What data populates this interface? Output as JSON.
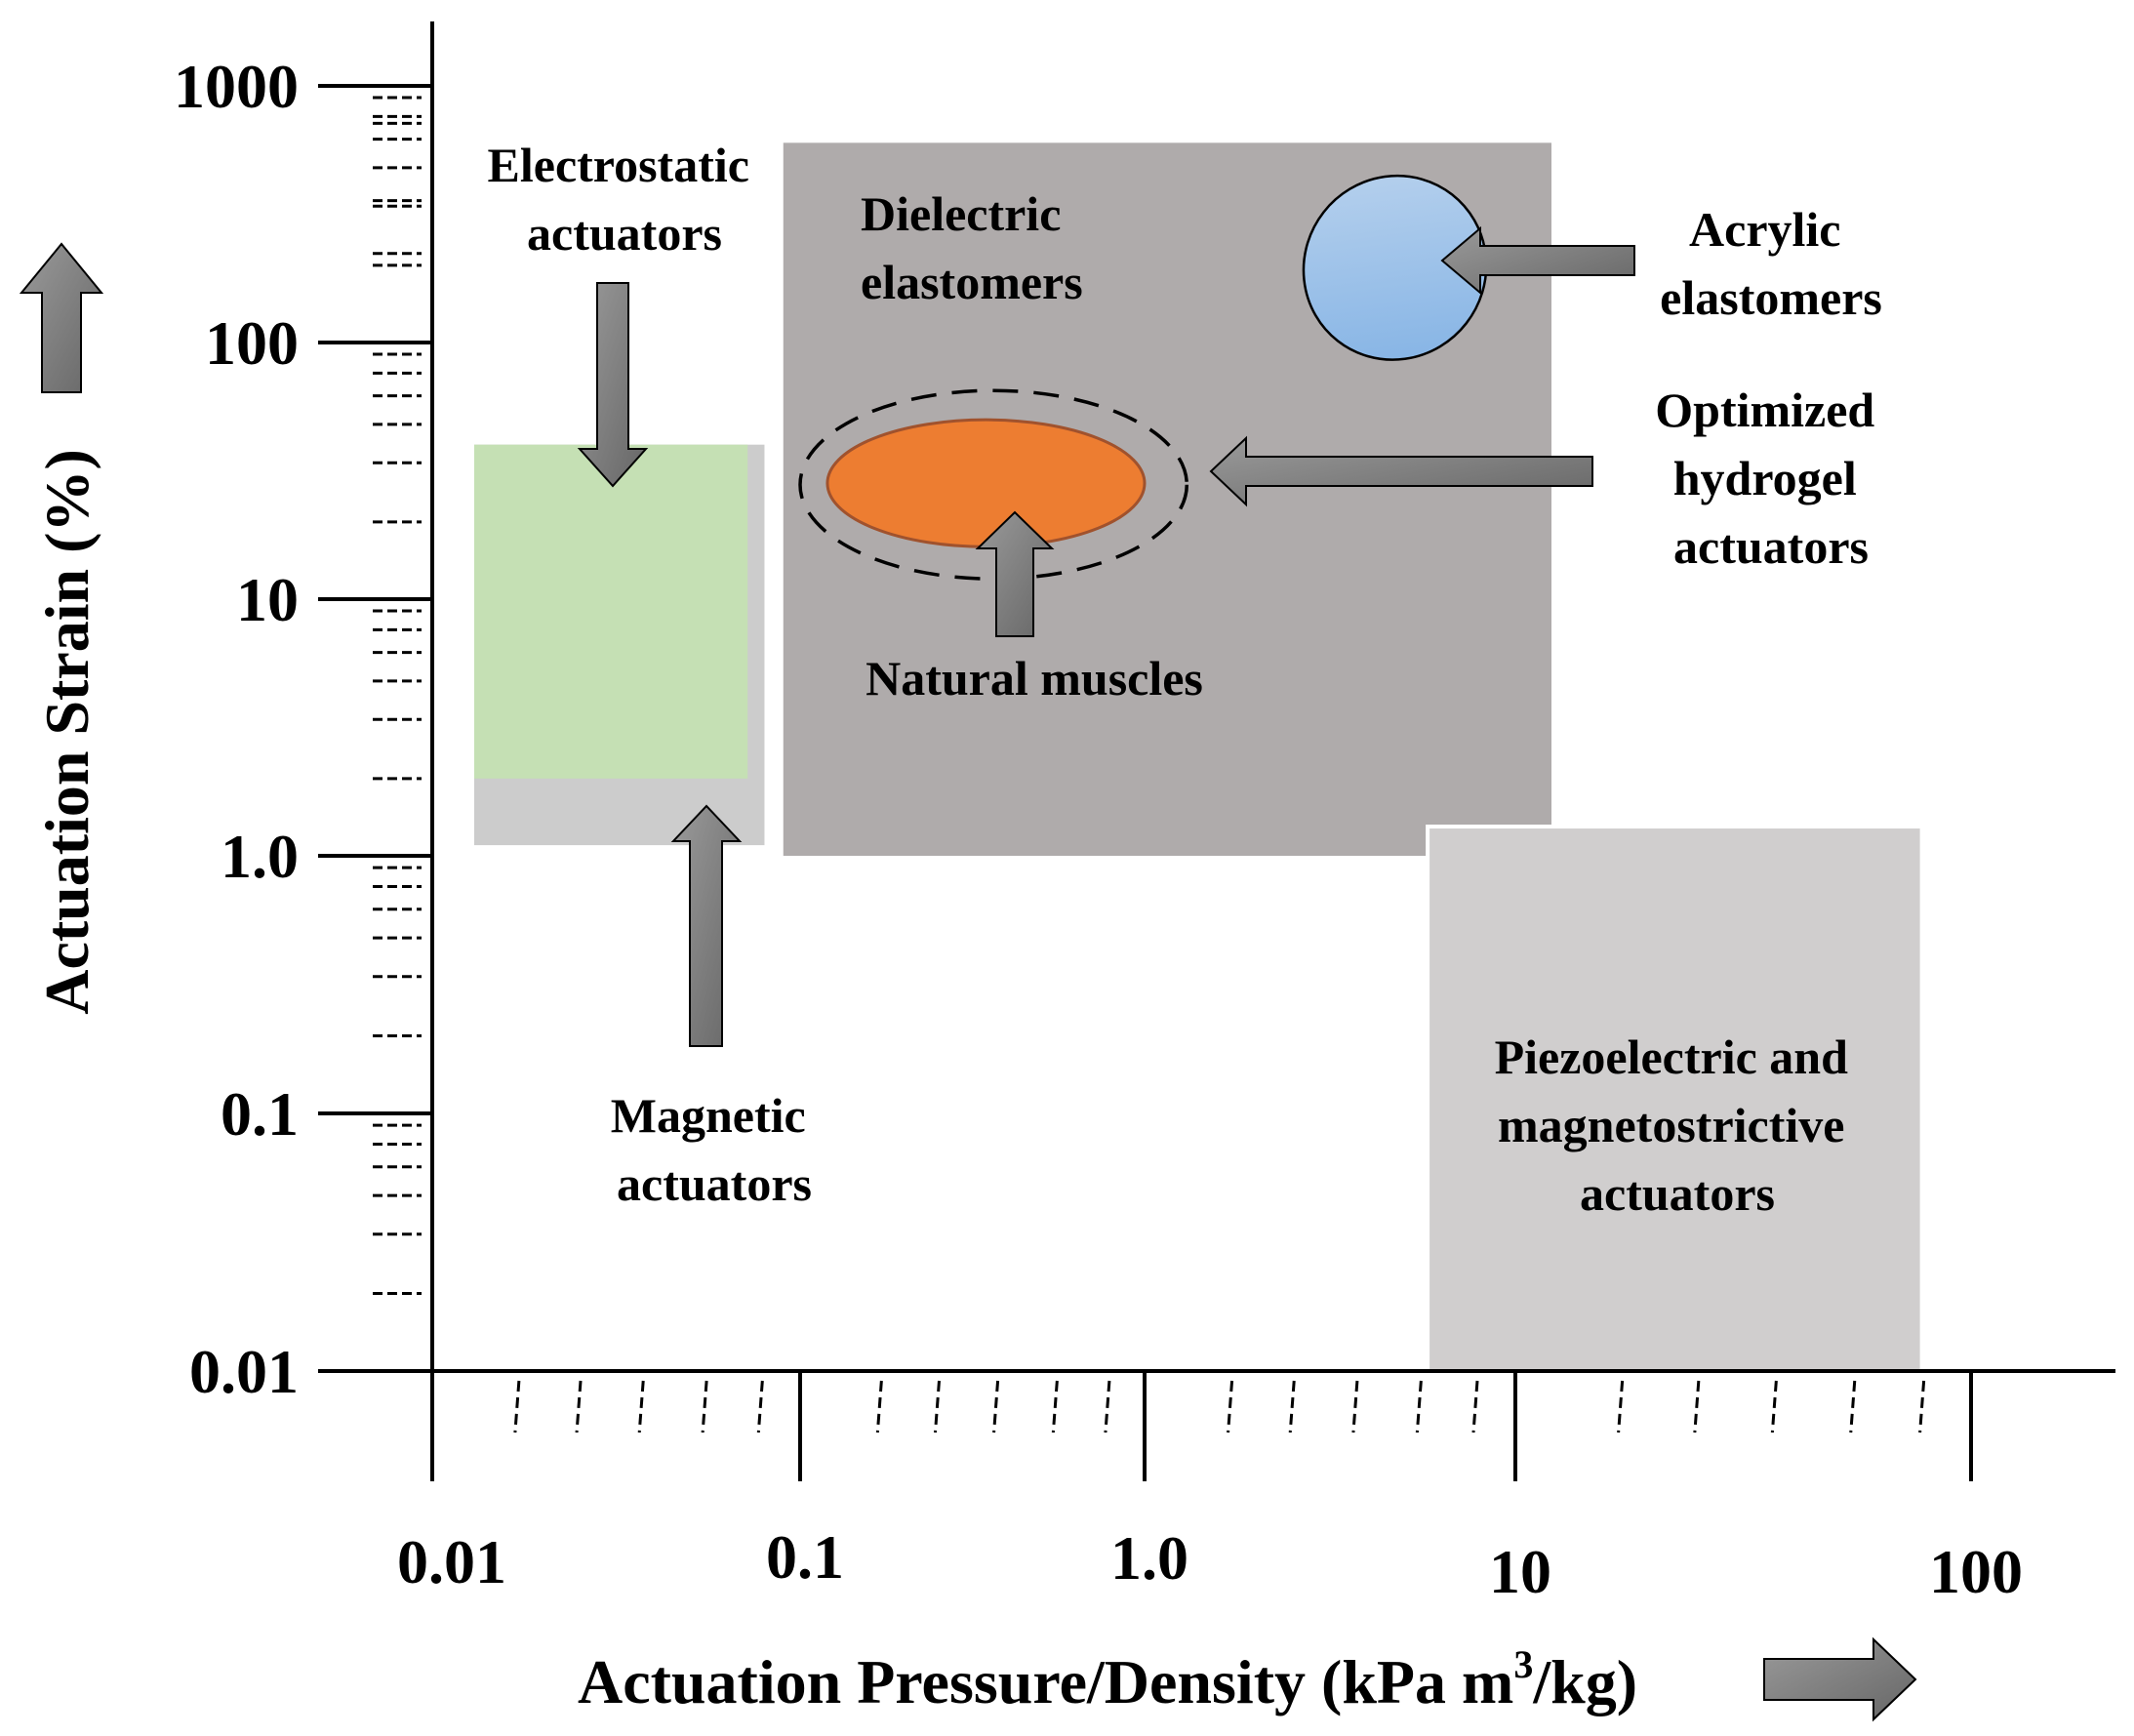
{
  "chart_data": {
    "type": "scatter",
    "title": "",
    "xlabel": "Actuation Pressure/Density (kPa m",
    "xlabel_sup": "3",
    "xlabel_tail": "/kg)",
    "ylabel": "Actuation Strain (%)",
    "x_scale": "log",
    "y_scale": "log",
    "xlim": [
      0.01,
      100
    ],
    "ylim": [
      0.01,
      1000
    ],
    "grid": false,
    "x_tick_labels": [
      "0.01",
      "0.1",
      "1.0",
      "10",
      "100"
    ],
    "y_tick_labels": [
      "0.01",
      "0.1",
      "1.0",
      "10",
      "100",
      "1000"
    ],
    "regions": [
      {
        "name": "Magnetic actuators",
        "label_lines": [
          "Magnetic",
          "actuators"
        ],
        "shape": "rect",
        "x": [
          0.013,
          0.08
        ],
        "y": [
          1.1,
          40
        ],
        "color": "#cccccc"
      },
      {
        "name": "Electrostatic actuators",
        "label_lines": [
          "Electrostatic",
          "actuators"
        ],
        "shape": "rect",
        "x": [
          0.013,
          0.072
        ],
        "y": [
          2.0,
          40
        ],
        "color": "#c5e0b4"
      },
      {
        "name": "Dielectric elastomers",
        "label_lines": [
          "Dielectric",
          "elastomers"
        ],
        "shape": "rect",
        "x": [
          0.09,
          12
        ],
        "y": [
          1.0,
          600
        ],
        "color": "#afabab"
      },
      {
        "name": "Piezoelectric and magnetostrictive actuators",
        "label_lines": [
          "Piezoelectric and",
          "magnetostrictive",
          "actuators"
        ],
        "shape": "rect",
        "x": [
          5.8,
          78
        ],
        "y": [
          0.01,
          1.3
        ],
        "color": "#d0cece"
      },
      {
        "name": "Acrylic elastomers",
        "label_lines": [
          "Acrylic",
          "elastomers"
        ],
        "shape": "ellipse",
        "x": [
          2.7,
          8.3
        ],
        "y": [
          85,
          450
        ],
        "color": "#9dc3e6"
      },
      {
        "name": "Natural muscles",
        "label_lines": [
          "Natural muscles"
        ],
        "shape": "ellipse",
        "x": [
          0.12,
          1.0
        ],
        "y": [
          16,
          50
        ],
        "color": "#ed7d31"
      },
      {
        "name": "Optimized hydrogel actuators",
        "label_lines": [
          "Optimized",
          "hydrogel",
          "actuators"
        ],
        "shape": "ellipse-dashed",
        "x": [
          0.1,
          1.3
        ],
        "y": [
          12,
          65
        ],
        "color": "none"
      }
    ]
  }
}
